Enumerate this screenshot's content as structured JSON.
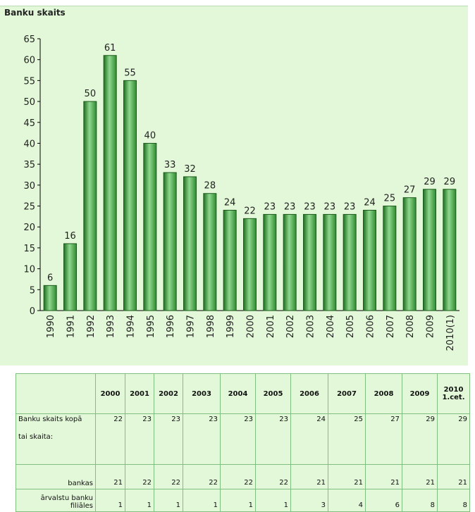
{
  "chart_data": {
    "type": "bar",
    "title": "Banku skaits",
    "categories": [
      "1990",
      "1991",
      "1992",
      "1993",
      "1994",
      "1995",
      "1996",
      "1997",
      "1998",
      "1999",
      "2000",
      "2001",
      "2002",
      "2003",
      "2004",
      "2005",
      "2006",
      "2007",
      "2008",
      "2009",
      "2010(1)"
    ],
    "values": [
      6,
      16,
      50,
      61,
      55,
      40,
      33,
      32,
      28,
      24,
      22,
      23,
      23,
      23,
      23,
      23,
      24,
      25,
      27,
      29,
      29
    ],
    "color": "#3b9b3b",
    "ylim": [
      0,
      65
    ],
    "yticks": [
      0,
      5,
      10,
      15,
      20,
      25,
      30,
      35,
      40,
      45,
      50,
      55,
      60,
      65
    ]
  },
  "table": {
    "columns": [
      "2000",
      "2001",
      "2002",
      "2003",
      "2004",
      "2005",
      "2006",
      "2007",
      "2008",
      "2009",
      "2010 1.cet."
    ],
    "rows": [
      {
        "label": "Banku skaits kopā",
        "note": "tai skaita:",
        "values": [
          22,
          23,
          23,
          23,
          23,
          23,
          24,
          25,
          27,
          29,
          29
        ]
      },
      {
        "label": "bankas",
        "values": [
          21,
          22,
          22,
          22,
          22,
          22,
          21,
          21,
          21,
          21,
          21
        ]
      },
      {
        "label": "ārvalstu banku filiāles",
        "values": [
          1,
          1,
          1,
          1,
          1,
          1,
          3,
          4,
          6,
          8,
          8
        ]
      }
    ]
  }
}
